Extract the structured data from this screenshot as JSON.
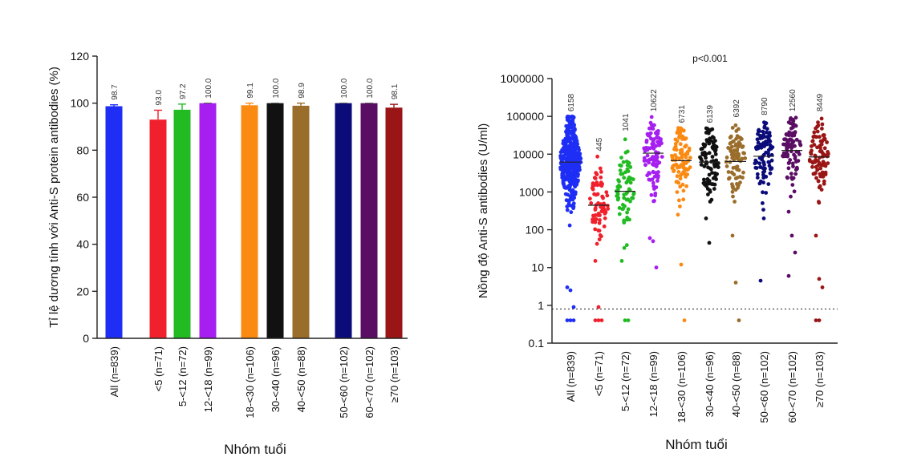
{
  "colors": {
    "series": [
      "#1f2ef5",
      "#f0202c",
      "#22bb22",
      "#a61ff0",
      "#fb8a12",
      "#111111",
      "#9a6d2b",
      "#0b0b7a",
      "#5a0e63",
      "#9a1515"
    ],
    "error_bar": "#444444",
    "dotted_line": "#555555",
    "axis": "#222222"
  },
  "chart_data": [
    {
      "type": "bar",
      "title": "",
      "ylabel": "Tỉ lệ dương tính với Anti-S protein antibodies (%)",
      "xlabel": "Nhóm tuổi",
      "ylim": [
        0,
        120
      ],
      "yticks": [
        "0",
        "20",
        "40",
        "60",
        "80",
        "100",
        "120"
      ],
      "categories": [
        "All (n=839)",
        "<5 (n=71)",
        "5-<12 (n=72)",
        "12-<18 (n=99)",
        "18-<30 (n=106)",
        "30-<40 (n=96)",
        "40-<50 (n=88)",
        "50-<60 (n=102)",
        "60-<70 (n=102)",
        "≥70 (n=103)"
      ],
      "values": [
        98.7,
        93.0,
        97.2,
        100.0,
        99.1,
        100.0,
        98.9,
        100.0,
        100.0,
        98.1
      ],
      "value_labels": [
        "98.7",
        "93.0",
        "97.2",
        "100.0",
        "99.1",
        "100.0",
        "98.9",
        "100.0",
        "100.0",
        "98.1"
      ],
      "error_upper": [
        99.3,
        97.0,
        99.6,
        100.0,
        100.0,
        100.0,
        100.0,
        100.0,
        100.0,
        99.5
      ],
      "legend": "none",
      "grid": false
    },
    {
      "type": "scatter",
      "title": "p<0.001",
      "ylabel": "Nồng độ Anti-S antibodies (U/ml)",
      "xlabel": "Nhóm tuổi",
      "yscale": "log",
      "ylim": [
        0.1,
        1000000
      ],
      "yticks": [
        "0.1",
        "1",
        "10",
        "100",
        "1000",
        "10000",
        "100000",
        "1000000"
      ],
      "categories": [
        "All (n=839)",
        "<5 (n=71)",
        "5-<12 (n=72)",
        "12-<18 (n=99)",
        "18-<30 (n=106)",
        "30-<40 (n=96)",
        "40-<50 (n=88)",
        "50-<60 (n=102)",
        "60-<70 (n=102)",
        "≥70 (n=103)"
      ],
      "medians": [
        6158,
        445,
        1041,
        10622,
        6731,
        6139,
        6392,
        8790,
        12560,
        8449
      ],
      "median_labels": [
        "6158",
        "445",
        "1041",
        "10622",
        "6731",
        "6139",
        "6392",
        "8790",
        "12560",
        "8449"
      ],
      "counts": [
        839,
        71,
        72,
        99,
        106,
        96,
        88,
        102,
        102,
        103
      ],
      "max_values": [
        100000,
        9000,
        30000,
        100000,
        50000,
        50000,
        70000,
        80000,
        100000,
        100000
      ],
      "outliers": [
        [
          3,
          2.5,
          0.9,
          0.4,
          0.4,
          0.4
        ],
        [
          15,
          0.9,
          0.4,
          0.4,
          0.4
        ],
        [
          15,
          0.4,
          0.4
        ],
        [
          60,
          50,
          10
        ],
        [
          250,
          12,
          0.4
        ],
        [
          200,
          45
        ],
        [
          70,
          4,
          0.4
        ],
        [
          4.5,
          200
        ],
        [
          300,
          70,
          25,
          6
        ],
        [
          70,
          5,
          3,
          0.4,
          0.4
        ]
      ],
      "threshold": 0.8,
      "legend": "none",
      "grid": false
    }
  ]
}
